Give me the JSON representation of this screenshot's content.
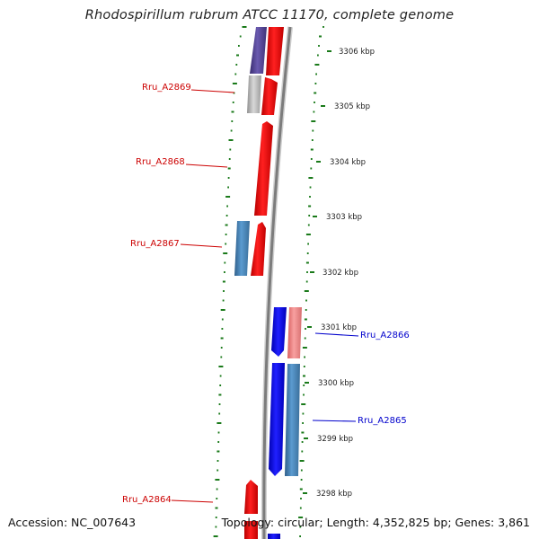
{
  "header": {
    "title": "Rhodospirillum rubrum ATCC 11170, complete genome"
  },
  "footer": {
    "accession": "Accession: NC_007643",
    "summary": "Topology: circular; Length: 4,352,825 bp; Genes: 3,861"
  },
  "scale_labels": [
    "3306 kbp",
    "3305 kbp",
    "3304 kbp",
    "3303 kbp",
    "3302 kbp",
    "3301 kbp",
    "3300 kbp",
    "3299 kbp",
    "3298 kbp"
  ],
  "genes": [
    {
      "id": "Rru_A2869",
      "color": "#cc0000"
    },
    {
      "id": "Rru_A2868",
      "color": "#cc0000"
    },
    {
      "id": "Rru_A2867",
      "color": "#cc0000"
    },
    {
      "id": "Rru_A2866",
      "color": "#0000cc"
    },
    {
      "id": "Rru_A2865",
      "color": "#0000cc"
    },
    {
      "id": "Rru_A2864",
      "color": "#cc0000"
    }
  ],
  "colors": {
    "backbone": "#8a8a8a",
    "forward_cds": "#ff0000",
    "reverse_cds": "#0000ff",
    "steelblue_feature": "#4682b4",
    "pink_feature": "#f08080",
    "grey_feature": "#b0b0b0",
    "purple_feature": "#4b3c8c",
    "gc_skew": "#1a7a1a"
  }
}
